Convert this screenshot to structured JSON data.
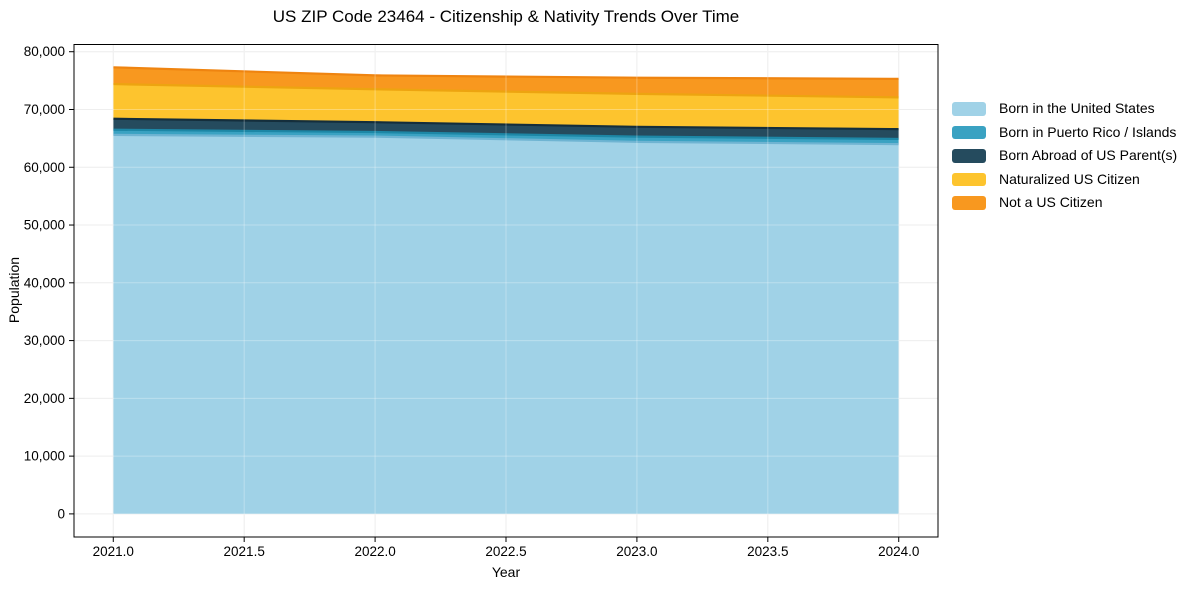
{
  "title": "US ZIP Code 23464 - Citizenship & Nativity Trends Over Time",
  "chart_data": {
    "type": "area",
    "stacked": true,
    "title": "US ZIP Code 23464 - Citizenship & Nativity Trends Over Time",
    "xlabel": "Year",
    "ylabel": "Population",
    "x": [
      2021,
      2022,
      2023,
      2024
    ],
    "xlim": [
      2020.85,
      2024.15
    ],
    "ylim": [
      -4000,
      81250
    ],
    "xticks": [
      2021.0,
      2021.5,
      2022.0,
      2022.5,
      2023.0,
      2023.5,
      2024.0
    ],
    "xtick_labels": [
      "2021.0",
      "2021.5",
      "2022.0",
      "2022.5",
      "2023.0",
      "2023.5",
      "2024.0"
    ],
    "yticks": [
      0,
      10000,
      20000,
      30000,
      40000,
      50000,
      60000,
      70000,
      80000
    ],
    "ytick_labels": [
      "0",
      "10,000",
      "20,000",
      "30,000",
      "40,000",
      "50,000",
      "60,000",
      "70,000",
      "80,000"
    ],
    "grid": true,
    "legend_position": "right-outside",
    "series": [
      {
        "name": "Born in the United States",
        "color": "#a0d2e7",
        "edge_color": "#6fb4d2",
        "values": [
          65600,
          65300,
          64400,
          64000
        ]
      },
      {
        "name": "Born in Puerto Rico / Islands",
        "color": "#3aa2c2",
        "edge_color": "#1d87a6",
        "values": [
          900,
          800,
          900,
          900
        ]
      },
      {
        "name": "Born Abroad of US Parent(s)",
        "color": "#254b5e",
        "edge_color": "#142e3c",
        "values": [
          1900,
          1700,
          1700,
          1700
        ]
      },
      {
        "name": "Naturalized US Citizen",
        "color": "#fdc42e",
        "edge_color": "#eda410",
        "values": [
          6000,
          5700,
          5700,
          5500
        ]
      },
      {
        "name": "Not a US Citizen",
        "color": "#f8981f",
        "edge_color": "#ef8410",
        "values": [
          2900,
          2400,
          2800,
          3200
        ]
      }
    ],
    "totals": [
      77300,
      75900,
      75500,
      75300
    ]
  },
  "colors": {
    "grid": "#e7e7e7",
    "spine": "#000000",
    "background": "#ffffff"
  }
}
